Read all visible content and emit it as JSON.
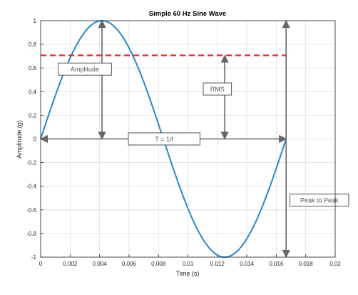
{
  "chart_data": {
    "type": "line",
    "title": "Simple 60 Hz Sine Wave",
    "xlabel": "Time (s)",
    "ylabel": "Amplitude (g)",
    "xlim": [
      0,
      0.02
    ],
    "ylim": [
      -1,
      1
    ],
    "grid": true,
    "x_ticks": [
      "0",
      "0.002",
      "0.004",
      "0.006",
      "0.008",
      "0.01",
      "0.012",
      "0.014",
      "0.016",
      "0.018",
      "0.02"
    ],
    "y_ticks": [
      "1",
      "0.8",
      "0.6",
      "0.4",
      "0.2",
      "0",
      "-0.2",
      "-0.4",
      "-0.6",
      "-0.8",
      "-1"
    ],
    "series": [
      {
        "frequency_hz": 60,
        "x": [
          0,
          0.001,
          0.002,
          0.003,
          0.004167,
          0.005,
          0.006,
          0.007,
          0.008,
          0.008333,
          0.009,
          0.01,
          0.011,
          0.0125,
          0.013,
          0.014,
          0.015,
          0.016,
          0.016667
        ],
        "y": [
          0,
          0.368,
          0.685,
          0.905,
          1.0,
          0.951,
          0.729,
          0.426,
          0.063,
          0,
          -0.249,
          -0.588,
          -0.844,
          -1.0,
          -0.982,
          -0.809,
          -0.518,
          -0.125,
          0
        ],
        "color": "#2a87c8"
      }
    ],
    "reference_line": {
      "y": 0.707,
      "color": "#e8262b",
      "style": "dashed"
    },
    "annotations": [
      {
        "label": "Amplitude",
        "arrow_x": 0.004167,
        "from_y": 0,
        "to_y": 1,
        "box_x": 0.003,
        "box_y": 0.5
      },
      {
        "label": "RMS",
        "arrow_x": 0.0125,
        "from_y": 0,
        "to_y": 0.707,
        "box_x": 0.012,
        "box_y": 0.35
      },
      {
        "label": "T = 1/f",
        "arrow_y": 0,
        "from_x": 0,
        "to_x": 0.016667,
        "box_x": 0.008,
        "box_y": 0
      },
      {
        "label": "Peak to Peak",
        "arrow_x": 0.016667,
        "from_y": -1,
        "to_y": 1,
        "box_x": 0.0165,
        "box_y": -0.5
      }
    ]
  }
}
